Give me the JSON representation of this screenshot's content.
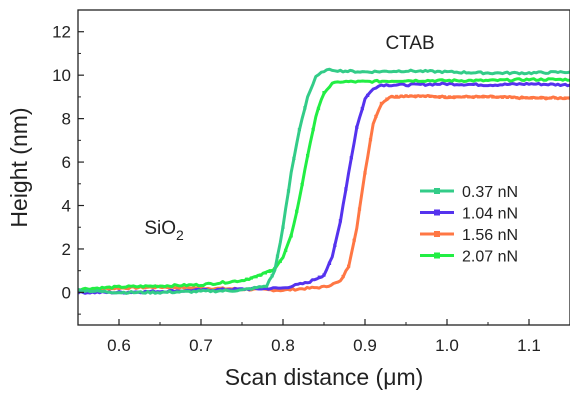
{
  "chart_data": {
    "type": "line",
    "xlabel_prefix": "Scan distance (",
    "xlabel_unit": "μm",
    "xlabel_suffix": ")",
    "ylabel": "Height (nm)",
    "xlim": [
      0.55,
      1.15
    ],
    "ylim": [
      -1.5,
      13
    ],
    "x_ticks": [
      0.6,
      0.7,
      0.8,
      0.9,
      1.0,
      1.1
    ],
    "x_tick_labels": [
      "0.6",
      "0.7",
      "0.8",
      "0.9",
      "1.0",
      "1.1"
    ],
    "y_ticks": [
      0,
      2,
      4,
      6,
      8,
      10,
      12
    ],
    "y_tick_labels": [
      "0",
      "2",
      "4",
      "6",
      "8",
      "10",
      "12"
    ],
    "grid": false,
    "legend_position": "right-middle",
    "annotations": [
      {
        "text": "CTAB",
        "x": 0.955,
        "y": 11.2
      },
      {
        "text_main": "SiO",
        "text_sub": "2",
        "x": 0.655,
        "y": 2.7
      }
    ],
    "series": [
      {
        "name": "0.37 nN",
        "color": "#33cc88",
        "x": [
          0.55,
          0.6,
          0.65,
          0.7,
          0.75,
          0.78,
          0.79,
          0.8,
          0.81,
          0.82,
          0.83,
          0.84,
          0.85,
          0.86,
          0.87,
          0.9,
          0.95,
          1.0,
          1.05,
          1.1,
          1.15
        ],
        "y": [
          0.1,
          0.0,
          0.0,
          0.05,
          0.1,
          0.3,
          1.0,
          3.0,
          5.5,
          7.5,
          9.0,
          9.9,
          10.2,
          10.25,
          10.2,
          10.15,
          10.2,
          10.15,
          10.1,
          10.1,
          10.15
        ]
      },
      {
        "name": "1.04 nN",
        "color": "#5533ee",
        "x": [
          0.55,
          0.6,
          0.65,
          0.7,
          0.75,
          0.8,
          0.83,
          0.85,
          0.86,
          0.87,
          0.88,
          0.89,
          0.9,
          0.91,
          0.92,
          0.95,
          1.0,
          1.05,
          1.1,
          1.15
        ],
        "y": [
          0.0,
          0.0,
          0.05,
          0.1,
          0.15,
          0.2,
          0.45,
          0.8,
          1.6,
          3.3,
          5.5,
          7.6,
          8.9,
          9.4,
          9.55,
          9.55,
          9.6,
          9.55,
          9.6,
          9.55
        ]
      },
      {
        "name": "1.56 nN",
        "color": "#ff7744",
        "x": [
          0.55,
          0.6,
          0.65,
          0.7,
          0.75,
          0.8,
          0.85,
          0.87,
          0.88,
          0.89,
          0.9,
          0.91,
          0.92,
          0.93,
          0.95,
          1.0,
          1.05,
          1.1,
          1.15
        ],
        "y": [
          0.1,
          0.2,
          0.25,
          0.2,
          0.15,
          0.1,
          0.25,
          0.5,
          1.2,
          3.0,
          5.5,
          7.8,
          8.7,
          9.0,
          9.05,
          9.0,
          9.0,
          8.95,
          8.95
        ]
      },
      {
        "name": "2.07 nN",
        "color": "#22ee44",
        "x": [
          0.55,
          0.6,
          0.65,
          0.7,
          0.75,
          0.77,
          0.79,
          0.8,
          0.81,
          0.82,
          0.83,
          0.84,
          0.85,
          0.86,
          0.87,
          0.88,
          0.9,
          0.95,
          1.0,
          1.05,
          1.1,
          1.15
        ],
        "y": [
          0.15,
          0.25,
          0.3,
          0.35,
          0.55,
          0.75,
          1.1,
          1.6,
          2.6,
          4.3,
          6.3,
          8.1,
          9.2,
          9.6,
          9.7,
          9.7,
          9.7,
          9.75,
          9.75,
          9.75,
          9.8,
          9.8
        ]
      }
    ]
  }
}
